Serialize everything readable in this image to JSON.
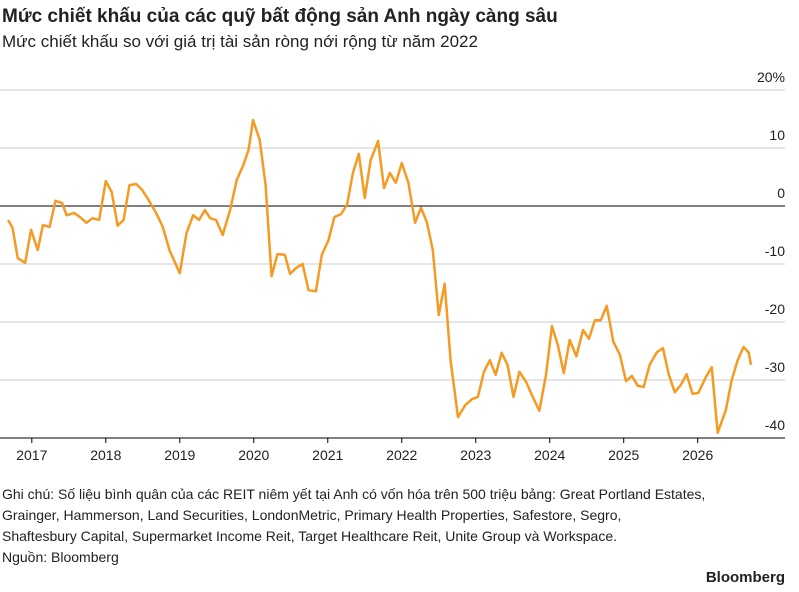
{
  "chart_data": {
    "type": "line",
    "title": "Mức chiết khấu của các quỹ bất động sản Anh ngày càng sâu",
    "subtitle": "Mức chiết khấu so với giá trị tài sản ròng nới rộng từ năm 2022",
    "note": [
      "Ghi chú: Số liệu bình quân của các REIT niêm yết tại Anh có vốn hóa trên 500 triệu bảng: Great Portland Estates,",
      "Grainger, Hammerson, Land Securities, LondonMetric, Primary Health Properties, Safestore, Segro,",
      "Shaftesbury Capital, Supermarket Income Reit, Target Healthcare Reit, Unite Group và Workspace."
    ],
    "source": "Nguồn: Bloomberg",
    "brand": "Bloomberg",
    "x": [
      2016.68,
      2016.74,
      2016.81,
      2016.91,
      2016.99,
      2017.08,
      2017.15,
      2017.24,
      2017.32,
      2017.41,
      2017.47,
      2017.57,
      2017.65,
      2017.74,
      2017.82,
      2017.91,
      2018.0,
      2018.08,
      2018.16,
      2018.24,
      2018.32,
      2018.41,
      2018.49,
      2018.58,
      2018.68,
      2018.77,
      2018.86,
      2019.0,
      2019.09,
      2019.18,
      2019.26,
      2019.34,
      2019.41,
      2019.49,
      2019.58,
      2019.68,
      2019.77,
      2019.86,
      2019.93,
      2019.99,
      2020.08,
      2020.16,
      2020.24,
      2020.32,
      2020.42,
      2020.49,
      2020.57,
      2020.66,
      2020.74,
      2020.84,
      2020.92,
      2021.01,
      2021.09,
      2021.18,
      2021.26,
      2021.34,
      2021.42,
      2021.5,
      2021.58,
      2021.68,
      2021.76,
      2021.84,
      2021.92,
      2022.0,
      2022.09,
      2022.18,
      2022.26,
      2022.34,
      2022.42,
      2022.5,
      2022.58,
      2022.66,
      2022.76,
      2022.86,
      2022.95,
      2023.03,
      2023.11,
      2023.19,
      2023.27,
      2023.35,
      2023.43,
      2023.51,
      2023.59,
      2023.68,
      2023.77,
      2023.86,
      2023.95,
      2024.03,
      2024.11,
      2024.19,
      2024.27,
      2024.36,
      2024.45,
      2024.53,
      2024.61,
      2024.69,
      2024.77,
      2024.86,
      2024.95,
      2025.03,
      2025.11,
      2025.19,
      2025.27,
      2025.35,
      2025.45,
      2025.53,
      2025.61,
      2025.69,
      2025.77,
      2025.85,
      2025.93,
      2026.01,
      2026.11,
      2026.19,
      2026.27,
      2026.38,
      2026.46,
      2026.54,
      2026.62,
      2026.69,
      2026.72
    ],
    "series": [
      {
        "color": "#f59a23",
        "values": [
          -2.4,
          -3.8,
          -9,
          -9.8,
          -4.1,
          -7.6,
          -3.3,
          -3.6,
          0.9,
          0.5,
          -1.6,
          -1.2,
          -1.9,
          -2.9,
          -2.1,
          -2.4,
          4.3,
          2.4,
          -3.4,
          -2.4,
          3.6,
          3.8,
          2.8,
          1,
          -1.2,
          -3.6,
          -7.6,
          -11.6,
          -4.7,
          -1.6,
          -2.4,
          -0.7,
          -2.1,
          -2.4,
          -5,
          -0.7,
          4.5,
          7.1,
          9.7,
          14.8,
          11.4,
          3.6,
          -12.1,
          -8.3,
          -8.4,
          -11.7,
          -10.7,
          -10,
          -14.5,
          -14.7,
          -8.4,
          -5.9,
          -1.9,
          -1.4,
          0.2,
          5.7,
          9,
          1.4,
          7.9,
          11.2,
          3.1,
          5.7,
          4,
          7.4,
          4,
          -2.9,
          -0.3,
          -2.8,
          -7.6,
          -18.8,
          -13.4,
          -26.6,
          -36.4,
          -34.3,
          -33.3,
          -32.9,
          -28.6,
          -26.6,
          -29.1,
          -25.3,
          -27.4,
          -32.9,
          -28.6,
          -30.3,
          -32.9,
          -35.3,
          -29.1,
          -20.7,
          -24,
          -28.8,
          -23.1,
          -25.9,
          -21.4,
          -22.9,
          -19.7,
          -19.7,
          -17.2,
          -23.4,
          -25.7,
          -30.2,
          -29.3,
          -31,
          -31.2,
          -27.4,
          -25.2,
          -24.5,
          -29.1,
          -32.1,
          -30.9,
          -29,
          -32.4,
          -32.2,
          -29.5,
          -27.8,
          -39.1,
          -35.2,
          -30,
          -26.6,
          -24.3,
          -25.3,
          -27.4
        ]
      }
    ],
    "xlim": [
      2016.57,
      2027.18
    ],
    "xticks": [
      2017,
      2018,
      2019,
      2020,
      2021,
      2022,
      2023,
      2024,
      2025,
      2026
    ],
    "ylim": [
      -40,
      20
    ],
    "yticks": [
      {
        "value": 20,
        "label": "20%"
      },
      10,
      0,
      -10,
      -20,
      -30,
      -40
    ],
    "grid": true
  }
}
